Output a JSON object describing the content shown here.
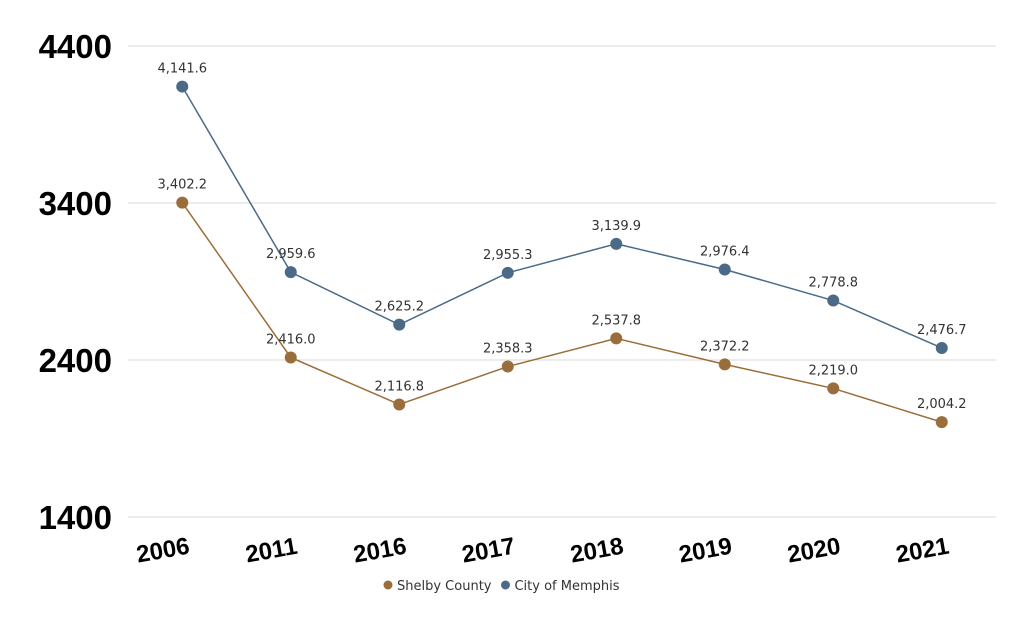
{
  "chart_data": {
    "type": "line",
    "categories": [
      "2006",
      "2011",
      "2016",
      "2017",
      "2018",
      "2019",
      "2020",
      "2021"
    ],
    "series": [
      {
        "name": "Shelby County",
        "color": "#9a6e3a",
        "values": [
          3402.2,
          2416.0,
          2116.8,
          2358.3,
          2537.8,
          2372.2,
          2219.0,
          2004.2
        ],
        "labels": [
          "3,402.2",
          "2,416.0",
          "2,116.8",
          "2,358.3",
          "2,537.8",
          "2,372.2",
          "2,219.0",
          "2,004.2"
        ]
      },
      {
        "name": "City of Memphis",
        "color": "#4a6a88",
        "values": [
          4141.6,
          2959.6,
          2625.2,
          2955.3,
          3139.9,
          2976.4,
          2778.8,
          2476.7
        ],
        "labels": [
          "4,141.6",
          "2,959.6",
          "2,625.2",
          "2,955.3",
          "3,139.9",
          "2,976.4",
          "2,778.8",
          "2,476.7"
        ]
      }
    ],
    "yticks": [
      "4400",
      "3400",
      "2400",
      "1400"
    ],
    "ytick_values": [
      4400,
      3400,
      2400,
      1400
    ],
    "ylim": [
      1400,
      4400
    ],
    "grid": true,
    "legend": "bottom",
    "title": "",
    "xlabel": "",
    "ylabel": ""
  }
}
